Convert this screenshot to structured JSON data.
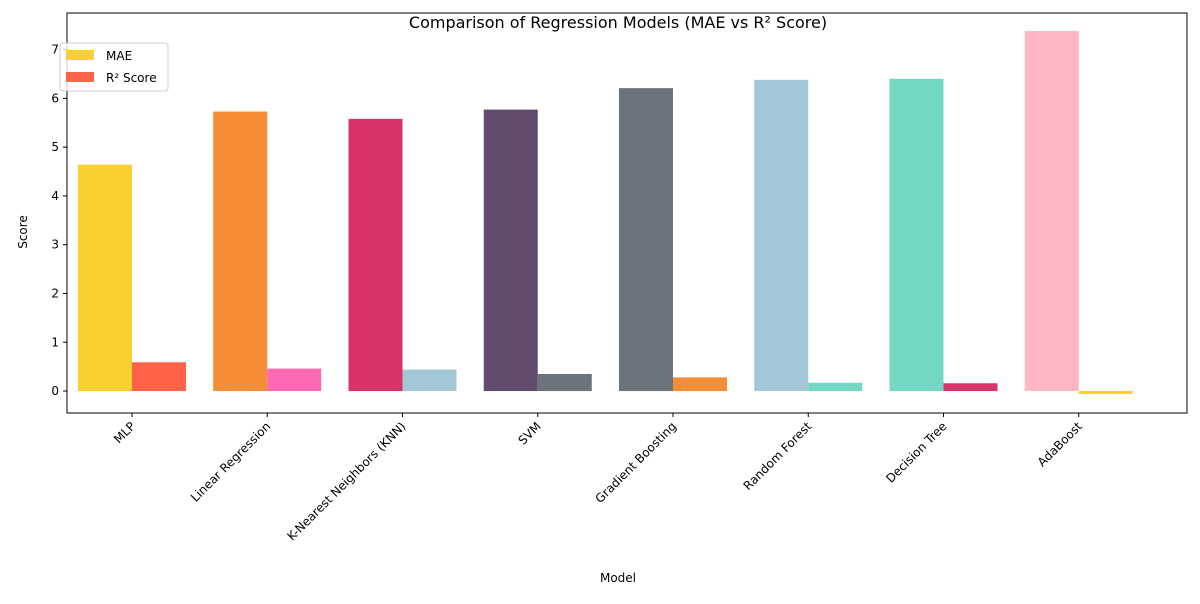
{
  "chart_data": {
    "type": "bar",
    "title": "Comparison of Regression Models (MAE vs R² Score)",
    "xlabel": "Model",
    "ylabel": "Score",
    "ylim": [
      -0.45,
      7.75
    ],
    "yticks": [
      0,
      1,
      2,
      3,
      4,
      5,
      6,
      7
    ],
    "grid": false,
    "legend_position": "top-left",
    "categories": [
      "MLP",
      "Linear Regression",
      "K-Nearest Neighbors (KNN)",
      "SVM",
      "Gradient Boosting",
      "Random Forest",
      "Decision Tree",
      "AdaBoost"
    ],
    "series": [
      {
        "name": "MAE",
        "legend_color": "#F9D030",
        "values": [
          4.64,
          5.73,
          5.58,
          5.77,
          6.21,
          6.38,
          6.4,
          7.38
        ],
        "colors": [
          "#F9D030",
          "#F48D36",
          "#D83466",
          "#614C6E",
          "#6B737C",
          "#A2C7D6",
          "#74D7C4",
          "#FFB6C0"
        ]
      },
      {
        "name": "R² Score",
        "legend_color": "#FF6347",
        "values": [
          0.59,
          0.46,
          0.44,
          0.35,
          0.28,
          0.17,
          0.16,
          -0.06
        ],
        "colors": [
          "#FF6347",
          "#FF69B4",
          "#A2C7D6",
          "#6B737C",
          "#F48D36",
          "#74D7C4",
          "#D83466",
          "#F9D030"
        ]
      }
    ]
  }
}
